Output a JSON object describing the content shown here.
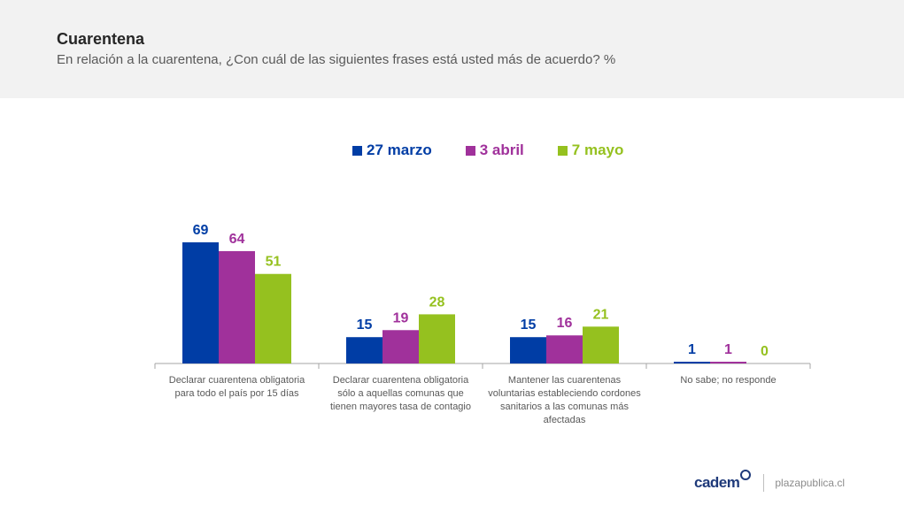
{
  "header": {
    "title": "Cuarentena",
    "subtitle": "En relación a la cuarentena, ¿Con cuál de las siguientes frases está usted más de acuerdo? %"
  },
  "colors": {
    "series_1": "#003da5",
    "series_2": "#a0319b",
    "series_3": "#95c11f",
    "axis": "#a6a6a6",
    "category_text": "#595959"
  },
  "chart_data": {
    "type": "bar",
    "title": "Cuarentena",
    "categories": [
      [
        "Declarar cuarentena obligatoria",
        "para todo el país por 15 días"
      ],
      [
        "Declarar cuarentena obligatoria",
        "sólo a aquellas comunas que",
        "tienen mayores tasa de contagio"
      ],
      [
        "Mantener las cuarentenas",
        "voluntarias estableciendo cordones",
        "sanitarios a las comunas más",
        "afectadas"
      ],
      [
        "No sabe; no responde"
      ]
    ],
    "series": [
      {
        "name": "27 marzo",
        "values": [
          69,
          15,
          15,
          1
        ]
      },
      {
        "name": "3 abril",
        "values": [
          64,
          19,
          16,
          1
        ]
      },
      {
        "name": "7 mayo",
        "values": [
          51,
          28,
          21,
          0
        ]
      }
    ],
    "ylim": [
      0,
      69
    ],
    "legend_position": "top-center",
    "grid": false
  },
  "footer": {
    "brand": "cadem",
    "site": "plazapublica.cl"
  }
}
